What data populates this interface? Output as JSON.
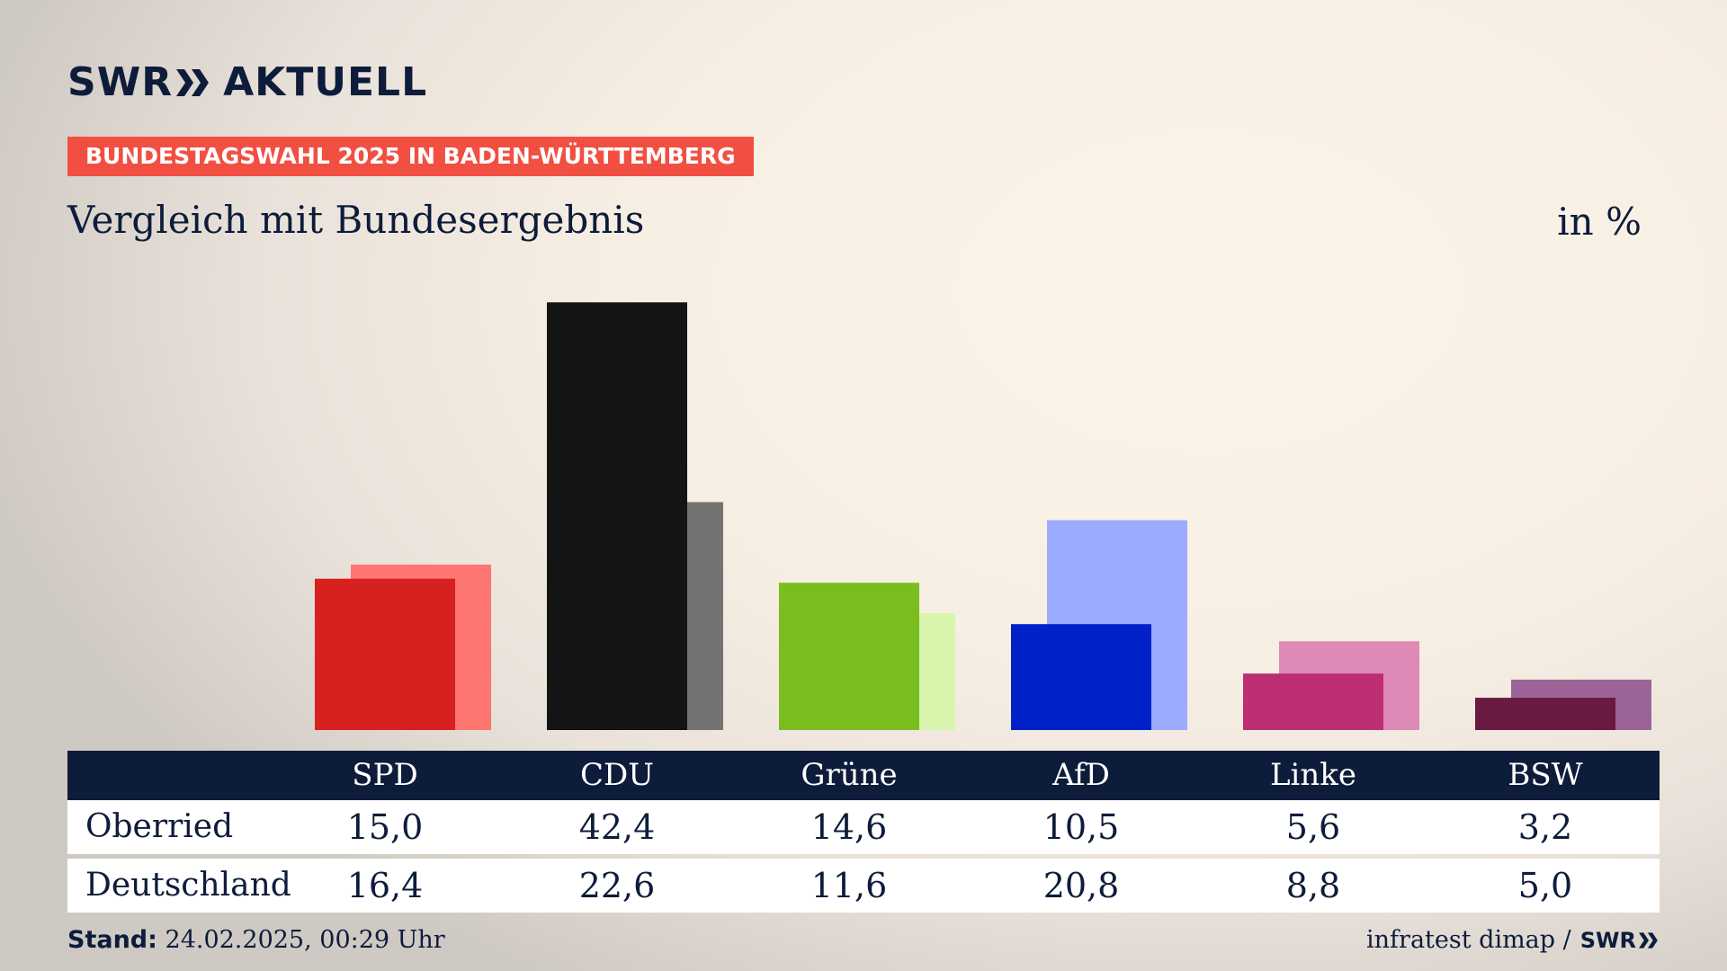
{
  "brand": {
    "name": "SWR",
    "product": "AKTUELL"
  },
  "banner": "BUNDESTAGSWAHL 2025 IN BADEN-WÜRTTEMBERG",
  "subtitle": "Vergleich mit Bundesergebnis",
  "unit": "in %",
  "chart_data": {
    "type": "bar",
    "title": "Vergleich mit Bundesergebnis",
    "categories": [
      "SPD",
      "CDU",
      "Grüne",
      "AfD",
      "Linke",
      "BSW"
    ],
    "series": [
      {
        "name": "Oberried",
        "values": [
          15.0,
          42.4,
          14.6,
          10.5,
          5.6,
          3.2
        ]
      },
      {
        "name": "Deutschland",
        "values": [
          16.4,
          22.6,
          11.6,
          20.8,
          8.8,
          5.0
        ]
      }
    ],
    "ylim": [
      0,
      45
    ],
    "grid": false,
    "colors_primary": [
      "#d7201f",
      "#141414",
      "#79bd1e",
      "#0020c8",
      "#bd2e72",
      "#6a1a40"
    ],
    "colors_secondary": [
      "#ff7570",
      "#757371",
      "#d9f5ad",
      "#9dabff",
      "#df89b7",
      "#9c6496"
    ]
  },
  "table": {
    "rows": [
      {
        "label": "Oberried",
        "values": [
          "15,0",
          "42,4",
          "14,6",
          "10,5",
          "5,6",
          "3,2"
        ]
      },
      {
        "label": "Deutschland",
        "values": [
          "16,4",
          "22,6",
          "11,6",
          "20,8",
          "8,8",
          "5,0"
        ]
      }
    ]
  },
  "footer": {
    "stand_label": "Stand:",
    "stand_value": "24.02.2025, 00:29 Uhr",
    "source": "infratest dimap /",
    "source_brand": "SWR"
  }
}
